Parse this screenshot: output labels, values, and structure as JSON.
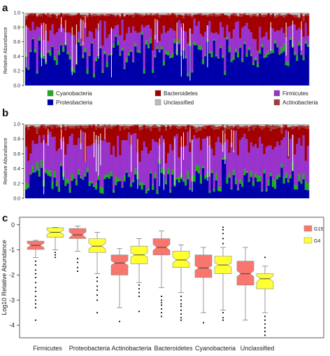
{
  "chart_data": [
    {
      "panel": "a",
      "type": "bar",
      "stacked": true,
      "ylabel": "Relative Abundance",
      "ylim": [
        0,
        1
      ],
      "yticks": [
        "0.0",
        "0.2",
        "0.4",
        "0.6",
        "0.8",
        "1.0"
      ],
      "n_bars": 130,
      "series": [
        {
          "name": "Proteobacteria",
          "color": "#0000aa"
        },
        {
          "name": "Cyanobacteria",
          "color": "#22aa22"
        },
        {
          "name": "Firmicutes",
          "color": "#9933cc"
        },
        {
          "name": "Bacteroidetes",
          "color": "#a30000"
        },
        {
          "name": "Actinobacteria",
          "color": "#a33a3a"
        },
        {
          "name": "Unclassified",
          "color": "#bbbbbb"
        }
      ],
      "typical_composition": {
        "Proteobacteria": 0.42,
        "Cyanobacteria": 0.04,
        "Firmicutes": 0.3,
        "Bacteroidetes": 0.2,
        "Actinobacteria": 0.02,
        "Unclassified": 0.02
      }
    },
    {
      "panel": "b",
      "type": "bar",
      "stacked": true,
      "ylabel": "Relative Abundance",
      "ylim": [
        0,
        1
      ],
      "yticks": [
        "0.0",
        "0.2",
        "0.4",
        "0.6",
        "0.8",
        "1.0"
      ],
      "n_bars": 130,
      "series": [
        {
          "name": "Proteobacteria",
          "color": "#0000aa"
        },
        {
          "name": "Cyanobacteria",
          "color": "#22aa22"
        },
        {
          "name": "Firmicutes",
          "color": "#9933cc"
        },
        {
          "name": "Bacteroidetes",
          "color": "#a30000"
        },
        {
          "name": "Actinobacteria",
          "color": "#a33a3a"
        },
        {
          "name": "Unclassified",
          "color": "#bbbbbb"
        }
      ],
      "typical_composition": {
        "Proteobacteria": 0.22,
        "Cyanobacteria": 0.06,
        "Firmicutes": 0.45,
        "Bacteroidetes": 0.22,
        "Actinobacteria": 0.03,
        "Unclassified": 0.02
      }
    },
    {
      "panel": "c",
      "type": "box",
      "ylabel": "Log10 Relative Abundance",
      "ylim": [
        -4.5,
        0.3
      ],
      "yticks": [
        0,
        -1,
        -2,
        -3,
        -4
      ],
      "categories": [
        "Firmicutes",
        "Proteobacteria",
        "Actinobacteria",
        "Bacteroidetes",
        "Cyanobacteria",
        "Unclassified"
      ],
      "legend_position": "right",
      "series": [
        {
          "name": "G15",
          "color": "#f8766d",
          "boxes": [
            {
              "q1": -0.98,
              "median": -0.82,
              "q3": -0.65,
              "whisker_low": -1.3,
              "whisker_high": -0.62,
              "outliers": [
                -1.45,
                -1.6,
                -1.8,
                -1.95,
                -2.1,
                -2.3,
                -2.5,
                -2.65,
                -2.85,
                -3.0,
                -3.15,
                -3.3,
                -3.8
              ]
            },
            {
              "q1": -0.55,
              "median": -0.4,
              "q3": -0.15,
              "whisker_low": -1.05,
              "whisker_high": -0.05,
              "outliers": [
                -1.35,
                -1.5,
                -1.7,
                -1.85
              ]
            },
            {
              "q1": -2.0,
              "median": -1.52,
              "q3": -1.2,
              "whisker_low": -3.3,
              "whisker_high": -0.95,
              "outliers": [
                -3.85
              ]
            },
            {
              "q1": -1.2,
              "median": -0.9,
              "q3": -0.55,
              "whisker_low": -2.5,
              "whisker_high": -0.25,
              "outliers": [
                -2.85,
                -3.0,
                -3.1,
                -3.2,
                -3.35,
                -3.5,
                -3.65
              ]
            },
            {
              "q1": -2.1,
              "median": -1.72,
              "q3": -1.2,
              "whisker_low": -3.5,
              "whisker_high": -0.9,
              "outliers": [
                -3.9
              ]
            },
            {
              "q1": -2.4,
              "median": -1.95,
              "q3": -1.45,
              "whisker_low": -3.8,
              "whisker_high": -0.9,
              "outliers": []
            }
          ]
        },
        {
          "name": "G4",
          "color": "#ffff33",
          "boxes": [
            {
              "q1": -0.5,
              "median": -0.3,
              "q3": -0.12,
              "whisker_low": -1.0,
              "whisker_high": -0.1,
              "outliers": [
                -1.1,
                -1.2,
                -1.3
              ]
            },
            {
              "q1": -1.1,
              "median": -0.85,
              "q3": -0.55,
              "whisker_low": -1.95,
              "whisker_high": -0.3,
              "outliers": [
                -2.1,
                -2.25,
                -2.45,
                -2.6,
                -2.8,
                -3.0,
                -3.5
              ]
            },
            {
              "q1": -1.55,
              "median": -1.2,
              "q3": -0.85,
              "whisker_low": -2.3,
              "whisker_high": -0.55,
              "outliers": [
                -2.4,
                -2.55,
                -2.7,
                -2.85,
                -3.45
              ]
            },
            {
              "q1": -1.7,
              "median": -1.4,
              "q3": -1.05,
              "whisker_low": -2.7,
              "whisker_high": -0.8,
              "outliers": [
                -2.85,
                -3.0,
                -3.15,
                -3.25,
                -3.4,
                -3.55,
                -3.7,
                -3.8
              ]
            },
            {
              "q1": -1.95,
              "median": -1.6,
              "q3": -1.25,
              "whisker_low": -3.4,
              "whisker_high": -0.9,
              "outliers": [
                -3.5,
                -3.7,
                -3.8,
                -0.75,
                -0.55,
                -0.35,
                -0.2,
                -0.1
              ]
            },
            {
              "q1": -2.55,
              "median": -2.15,
              "q3": -1.95,
              "whisker_low": -3.5,
              "whisker_high": -1.65,
              "outliers": [
                -1.3,
                -3.65,
                -3.8,
                -3.95,
                -4.1,
                -4.25,
                -4.4
              ]
            }
          ]
        }
      ]
    }
  ],
  "legend_ab": [
    {
      "name": "Cyanobacteria",
      "color": "#22aa22"
    },
    {
      "name": "Proteobacteria",
      "color": "#0000aa"
    },
    {
      "name": "Bacteroidetes",
      "color": "#a30000"
    },
    {
      "name": "Unclassified",
      "color": "#bbbbbb"
    },
    {
      "name": "Firmicutes",
      "color": "#9933cc"
    },
    {
      "name": "Actinobacteria",
      "color": "#a33a3a"
    }
  ],
  "panels": [
    "a",
    "b",
    "c"
  ]
}
